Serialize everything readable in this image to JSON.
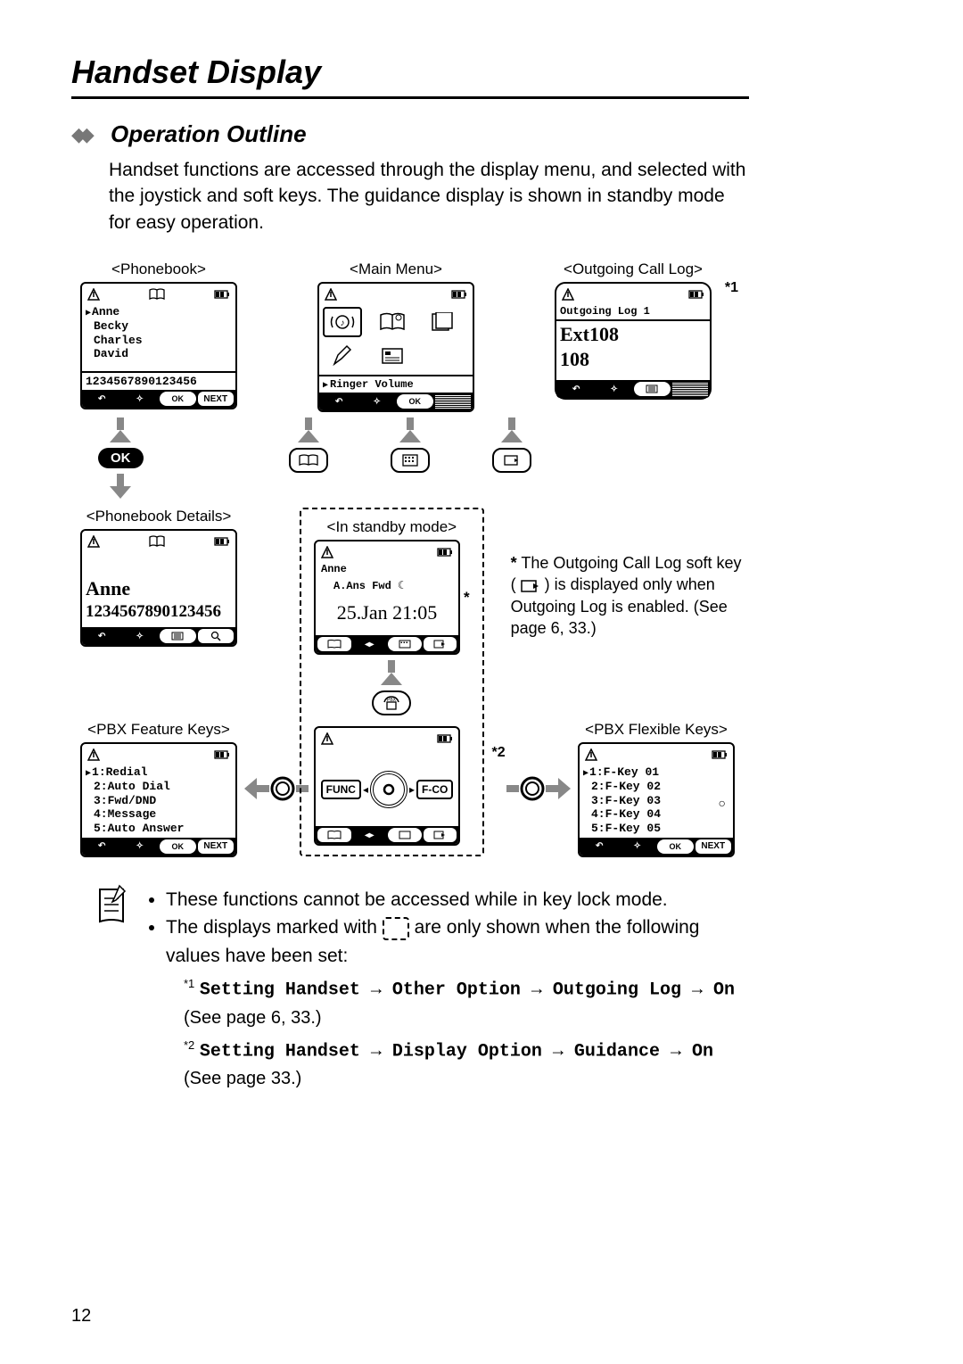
{
  "page": {
    "title": "Handset Display",
    "section_title": "Operation Outline",
    "intro": "Handset functions are accessed through the display menu, and selected with the joystick and soft keys. The guidance display is shown in standby mode for easy operation.",
    "page_number": "12"
  },
  "labels": {
    "phonebook": "<Phonebook>",
    "main_menu": "<Main Menu>",
    "outgoing_log": "<Outgoing Call Log>",
    "phonebook_details": "<Phonebook Details>",
    "standby": "<In standby mode>",
    "pbx_feature": "<PBX Feature Keys>",
    "pbx_flexible": "<PBX Flexible Keys>",
    "ok": "OK",
    "func": "FUNC",
    "fco": "F-CO",
    "next": "NEXT",
    "star1": "*1",
    "star2": "*2",
    "star": "*"
  },
  "phonebook": {
    "entries": [
      "Anne",
      "Becky",
      "Charles",
      "David"
    ],
    "selected_index": 0,
    "number": "1234567890123456"
  },
  "main_menu": {
    "selected_label": "Ringer Volume"
  },
  "outgoing": {
    "header": "Outgoing Log  1",
    "ext": "Ext108",
    "num": "108"
  },
  "details": {
    "name": "Anne",
    "number": "1234567890123456"
  },
  "standby": {
    "name": "Anne",
    "status": "A.Ans Fwd ☾",
    "datetime": "25.Jan 21:05"
  },
  "pbx_feature": {
    "items": [
      "1:Redial",
      "2:Auto Dial",
      "3:Fwd/DND",
      "4:Message",
      "5:Auto Answer"
    ],
    "selected_index": 0
  },
  "pbx_flexible": {
    "items": [
      "1:F-Key 01",
      "2:F-Key 02",
      "3:F-Key 03",
      "4:F-Key 04",
      "5:F-Key 05"
    ],
    "selected_index": 0
  },
  "side_note": {
    "line1": "The Outgoing Call Log soft key (",
    "line2": ") is displayed only when Outgoing Log is enabled. (See page 6, 33.)"
  },
  "notes": {
    "bullet1": "These functions cannot be accessed while in key lock mode.",
    "bullet2a": "The displays marked with ",
    "bullet2b": " are only shown when the following values have been set:",
    "fn1_pre": "Setting Handset → Other Option → Outgoing Log → On",
    "fn1_post": " (See page 6, 33.)",
    "fn2_pre": "Setting Handset → Display Option → Guidance → On",
    "fn2_post": " (See page 33.)"
  },
  "style": {
    "arrow_color": "#888888",
    "text_color": "#000000",
    "mono_font": "Courier New"
  }
}
